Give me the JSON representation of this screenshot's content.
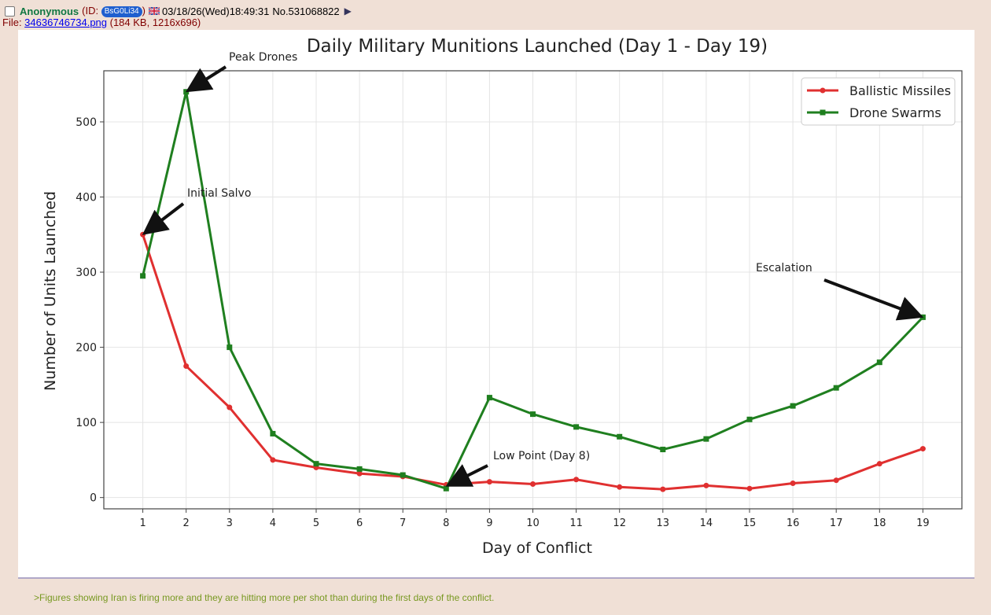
{
  "post": {
    "name": "Anonymous",
    "id_prefix": "(ID: ",
    "id": "BsG0Li34",
    "id_suffix": ")",
    "datetime": "03/18/26(Wed)18:49:31",
    "post_no": "No.531068822",
    "expand_icon": "triangle-right-icon",
    "flag_icon": "uk-flag-icon"
  },
  "file": {
    "prefix": "File: ",
    "filename": "34636746734.png",
    "meta": " (184 KB, 1216x696)"
  },
  "comment": ">Figures showing Iran is firing more and they are hitting more per shot than during the first days of the conflict.",
  "colors": {
    "background": "#f0e0d6",
    "name": "#117743",
    "greentext": "#789922",
    "ballistic": "#e03030",
    "drone": "#1f7f1f"
  },
  "chart_data": {
    "type": "line",
    "title": "Daily Military Munitions Launched (Day 1 - Day 19)",
    "xlabel": "Day of Conflict",
    "ylabel": "Number of Units Launched",
    "x": [
      1,
      2,
      3,
      4,
      5,
      6,
      7,
      8,
      9,
      10,
      11,
      12,
      13,
      14,
      15,
      16,
      17,
      18,
      19
    ],
    "xlim": [
      0.1,
      19.9
    ],
    "ylim": [
      -15,
      568
    ],
    "yticks": [
      0,
      100,
      200,
      300,
      400,
      500
    ],
    "grid": true,
    "legend": "top-right",
    "series": [
      {
        "name": "Ballistic Missiles",
        "color": "#e03030",
        "marker": "circle",
        "values": [
          350,
          175,
          120,
          50,
          40,
          32,
          28,
          17,
          21,
          18,
          24,
          14,
          11,
          16,
          12,
          19,
          23,
          45,
          65
        ]
      },
      {
        "name": "Drone Swarms",
        "color": "#1f7f1f",
        "marker": "square",
        "values": [
          295,
          540,
          200,
          85,
          45,
          38,
          30,
          12,
          133,
          111,
          94,
          81,
          64,
          78,
          104,
          122,
          146,
          180,
          240
        ]
      }
    ],
    "annotations": [
      {
        "text": "Peak Drones",
        "x": 2,
        "y": 540
      },
      {
        "text": "Initial Salvo",
        "x": 1,
        "y": 350
      },
      {
        "text": "Low Point (Day 8)",
        "x": 8,
        "y": 15
      },
      {
        "text": "Escalation",
        "x": 19,
        "y": 240
      }
    ]
  }
}
